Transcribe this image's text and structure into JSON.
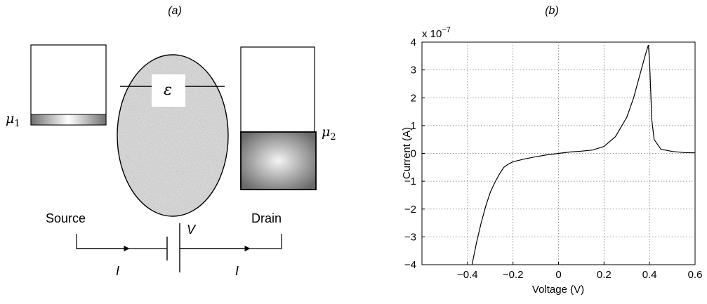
{
  "panel_a": {
    "label": "(a)",
    "mu1": "μ",
    "mu1_sub": "1",
    "mu2": "μ",
    "mu2_sub": "2",
    "epsilon": "ε",
    "source": "Source",
    "drain": "Drain",
    "voltage": "V",
    "current_left": "I",
    "current_right": "I"
  },
  "panel_b": {
    "label": "(b)"
  },
  "chart_data": {
    "type": "line",
    "title": "",
    "xlabel": "Voltage (V)",
    "ylabel": "Current (A)",
    "y_multiplier": "x 10",
    "y_exponent": "−7",
    "xlim": [
      -0.6,
      0.6
    ],
    "ylim": [
      -4,
      4
    ],
    "grid": true,
    "x_ticks": [
      -0.4,
      -0.2,
      0,
      0.2,
      0.4,
      0.6
    ],
    "x_tick_labels": [
      "−0.4",
      "−0.2",
      "0",
      "0.2",
      "0.4",
      "0.6"
    ],
    "y_ticks": [
      -4,
      -3,
      -2,
      -1,
      0,
      1,
      2,
      3,
      4
    ],
    "y_tick_labels": [
      "−4",
      "−3",
      "−2",
      "−1",
      "0",
      "1",
      "2",
      "3",
      "4"
    ],
    "series": [
      {
        "x": [
          -0.38,
          -0.36,
          -0.34,
          -0.32,
          -0.3,
          -0.28,
          -0.26,
          -0.24,
          -0.22,
          -0.2,
          -0.15,
          -0.1,
          -0.05,
          0.0,
          0.05,
          0.1,
          0.15,
          0.2,
          0.25,
          0.3,
          0.33,
          0.36,
          0.38,
          0.395,
          0.4,
          0.41,
          0.42,
          0.45,
          0.5,
          0.55,
          0.6
        ],
        "y": [
          -4.0,
          -3.2,
          -2.5,
          -1.9,
          -1.4,
          -1.05,
          -0.75,
          -0.5,
          -0.38,
          -0.3,
          -0.2,
          -0.12,
          -0.05,
          0.0,
          0.05,
          0.08,
          0.12,
          0.25,
          0.6,
          1.3,
          2.0,
          2.9,
          3.5,
          3.9,
          3.3,
          1.2,
          0.5,
          0.15,
          0.07,
          0.03,
          0.02
        ]
      }
    ]
  }
}
